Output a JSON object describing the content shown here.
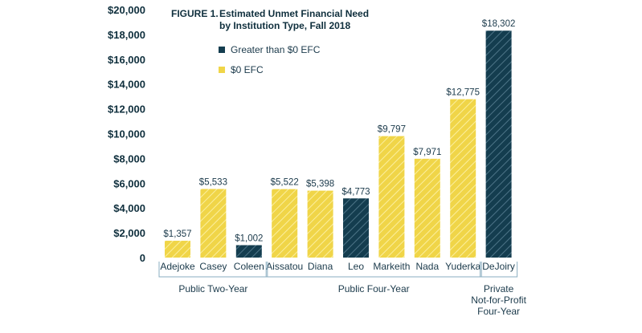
{
  "chart_data": {
    "type": "bar",
    "figure_number": "FIGURE 1.",
    "title_lines": [
      "Estimated Unmet Financial Need",
      "by Institution Type, Fall 2018"
    ],
    "categories": [
      "Adejoke",
      "Casey",
      "Coleen",
      "Aissatou",
      "Diana",
      "Leo",
      "Markeith",
      "Nada",
      "Yuderka",
      "DeJoiry"
    ],
    "values": [
      1357,
      5533,
      1002,
      5522,
      5398,
      4773,
      9797,
      7971,
      12775,
      18302
    ],
    "value_labels": [
      "$1,357",
      "$5,533",
      "$1,002",
      "$5,522",
      "$5,398",
      "$4,773",
      "$9,797",
      "$7,971",
      "$12,775",
      "$18,302"
    ],
    "bar_series": [
      "$0 EFC",
      "$0 EFC",
      "Greater than $0 EFC",
      "$0 EFC",
      "$0 EFC",
      "Greater than $0 EFC",
      "$0 EFC",
      "$0 EFC",
      "$0 EFC",
      "Greater than $0 EFC"
    ],
    "series": [
      {
        "name": "Greater than $0 EFC",
        "color": "#143d4f"
      },
      {
        "name": "$0 EFC",
        "color": "#f0d548"
      }
    ],
    "ylim": [
      0,
      20000
    ],
    "yticks": [
      0,
      2000,
      4000,
      6000,
      8000,
      10000,
      12000,
      14000,
      16000,
      18000,
      20000
    ],
    "ytick_labels": [
      "0",
      "$2,000",
      "$4,000",
      "$6,000",
      "$8,000",
      "$10,000",
      "$12,000",
      "$14,000",
      "$16,000",
      "$18,000",
      "$20,000"
    ],
    "groups": [
      {
        "label_lines": [
          "Public Two-Year"
        ],
        "first": 0,
        "last": 2
      },
      {
        "label_lines": [
          "Public Four-Year"
        ],
        "first": 3,
        "last": 8
      },
      {
        "label_lines": [
          "Private",
          "Not-for-Profit",
          "Four-Year"
        ],
        "first": 9,
        "last": 9
      }
    ],
    "legend_position": "top-left",
    "grid": false,
    "colors": {
      "dark": "#143d4f",
      "yellow": "#f0d548",
      "bracket": "#8aaec0",
      "axis": "#0f2f3d"
    }
  }
}
